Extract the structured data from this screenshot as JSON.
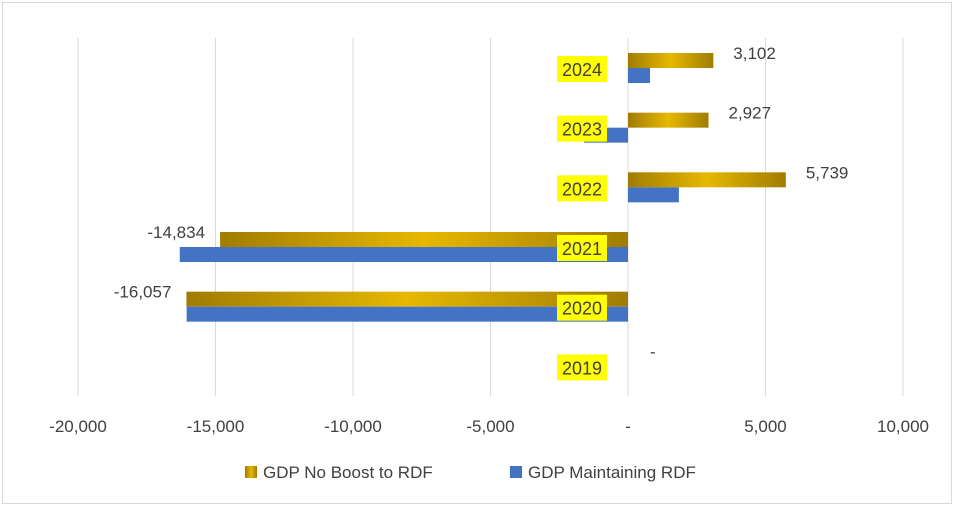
{
  "chart_data": {
    "type": "bar",
    "orientation": "horizontal",
    "categories": [
      "2024",
      "2023",
      "2022",
      "2021",
      "2020",
      "2019"
    ],
    "series": [
      {
        "name": "GDP No Boost to RDF",
        "values": [
          3102,
          2927,
          5739,
          -14834,
          -16057,
          0
        ],
        "color": "#c9a000"
      },
      {
        "name": "GDP Maintaining RDF",
        "values": [
          800,
          -1600,
          1850,
          -16300,
          -16050,
          0
        ],
        "color": "#4472c4"
      }
    ],
    "data_labels": [
      "3,102",
      "2,927",
      "5,739",
      "-14,834",
      "-16,057",
      "-"
    ],
    "xlim": [
      -20000,
      10000
    ],
    "x_ticks": [
      -20000,
      -15000,
      -10000,
      -5000,
      0,
      5000,
      10000
    ],
    "x_tick_labels": [
      "-20,000",
      "-15,000",
      "-10,000",
      "-5,000",
      "-",
      "5,000",
      "10,000"
    ],
    "category_label_highlight": "#ffff00",
    "grid": true,
    "legend": "bottom"
  }
}
